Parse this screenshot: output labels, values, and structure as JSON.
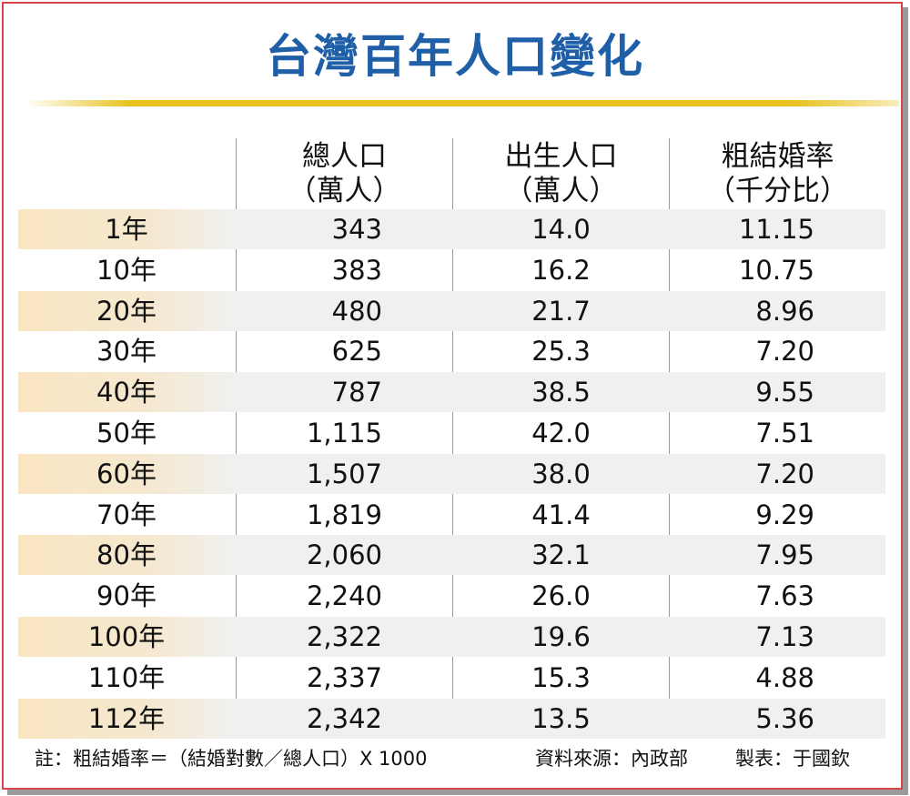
{
  "chart_data": {
    "type": "table",
    "title": "台灣百年人口變化",
    "columns": [
      {
        "line1": "",
        "line2": ""
      },
      {
        "line1": "總人口",
        "line2": "（萬人）"
      },
      {
        "line1": "出生人口",
        "line2": "（萬人）"
      },
      {
        "line1": "粗結婚率",
        "line2": "（千分比）"
      }
    ],
    "rows": [
      {
        "year": "1年",
        "population": "343",
        "births": "14.0",
        "marriage_rate": "11.15"
      },
      {
        "year": "10年",
        "population": "383",
        "births": "16.2",
        "marriage_rate": "10.75"
      },
      {
        "year": "20年",
        "population": "480",
        "births": "21.7",
        "marriage_rate": "8.96"
      },
      {
        "year": "30年",
        "population": "625",
        "births": "25.3",
        "marriage_rate": "7.20"
      },
      {
        "year": "40年",
        "population": "787",
        "births": "38.5",
        "marriage_rate": "9.55"
      },
      {
        "year": "50年",
        "population": "1,115",
        "births": "42.0",
        "marriage_rate": "7.51"
      },
      {
        "year": "60年",
        "population": "1,507",
        "births": "38.0",
        "marriage_rate": "7.20"
      },
      {
        "year": "70年",
        "population": "1,819",
        "births": "41.4",
        "marriage_rate": "9.29"
      },
      {
        "year": "80年",
        "population": "2,060",
        "births": "32.1",
        "marriage_rate": "7.95"
      },
      {
        "year": "90年",
        "population": "2,240",
        "births": "26.0",
        "marriage_rate": "7.63"
      },
      {
        "year": "100年",
        "population": "2,322",
        "births": "19.6",
        "marriage_rate": "7.13"
      },
      {
        "year": "110年",
        "population": "2,337",
        "births": "15.3",
        "marriage_rate": "4.88"
      },
      {
        "year": "112年",
        "population": "2,342",
        "births": "13.5",
        "marriage_rate": "5.36"
      }
    ],
    "note": "註：粗結婚率＝（結婚對數／總人口）X 1000",
    "source": "資料來源：內政部",
    "maker": "製表：于國欽"
  },
  "colors": {
    "title": "#1f5fa8",
    "gold_rule": "#e8c21e",
    "frame_border": "#d9434b",
    "row_shade": "#f0f0f0",
    "year_shade": "#fae6c2"
  }
}
